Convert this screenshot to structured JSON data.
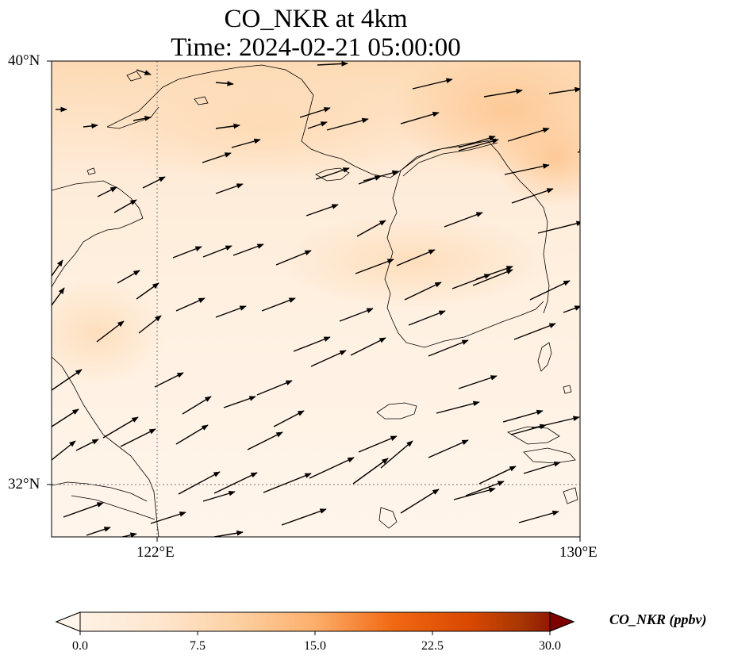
{
  "title": {
    "line1": "CO_NKR at 4km",
    "line2": "Time: 2024-02-21 05:00:00"
  },
  "axes": {
    "lat_labels": [
      "40°N",
      "32°N"
    ],
    "lon_labels": [
      "122°E",
      "130°E"
    ],
    "gridlines": "dotted at 122°E and 32°N"
  },
  "colorbar": {
    "label": "CO_NKR (ppbv)",
    "ticks": [
      "0.0",
      "7.5",
      "15.0",
      "22.5",
      "30.0"
    ],
    "range": [
      0,
      30
    ],
    "extend": "both",
    "colormap": [
      "#fff5eb",
      "#fdd49e",
      "#fdae6b",
      "#f16913",
      "#d7301f",
      "#b30000",
      "#7f0000"
    ]
  },
  "map": {
    "region": "Yellow Sea / Korean Peninsula",
    "lon_range": [
      120,
      130
    ],
    "lat_range": [
      31,
      40
    ],
    "field": "CO_NKR concentration (light orange, ~2–8 ppbv), higher in north",
    "vectors": "wind arrows pointing east-northeast"
  }
}
